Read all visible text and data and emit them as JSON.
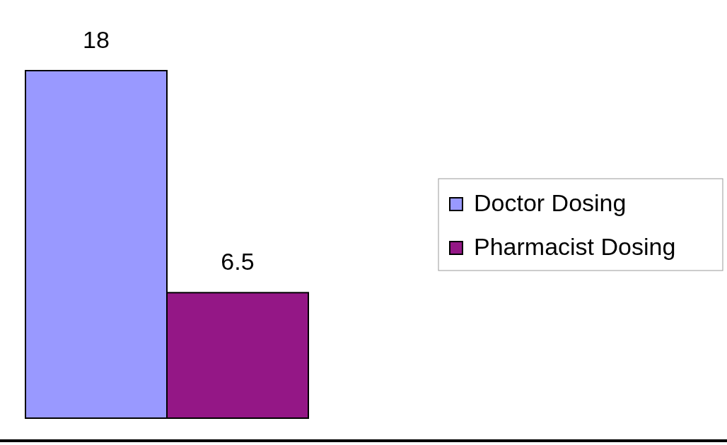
{
  "chart_data": {
    "type": "bar",
    "categories": [
      null
    ],
    "series": [
      {
        "name": "Doctor Dosing",
        "color": "#9999ff",
        "values": [
          18
        ]
      },
      {
        "name": "Pharmacist Dosing",
        "color": "#941786",
        "values": [
          6.5
        ]
      }
    ],
    "data_labels": true,
    "legend": "right"
  }
}
